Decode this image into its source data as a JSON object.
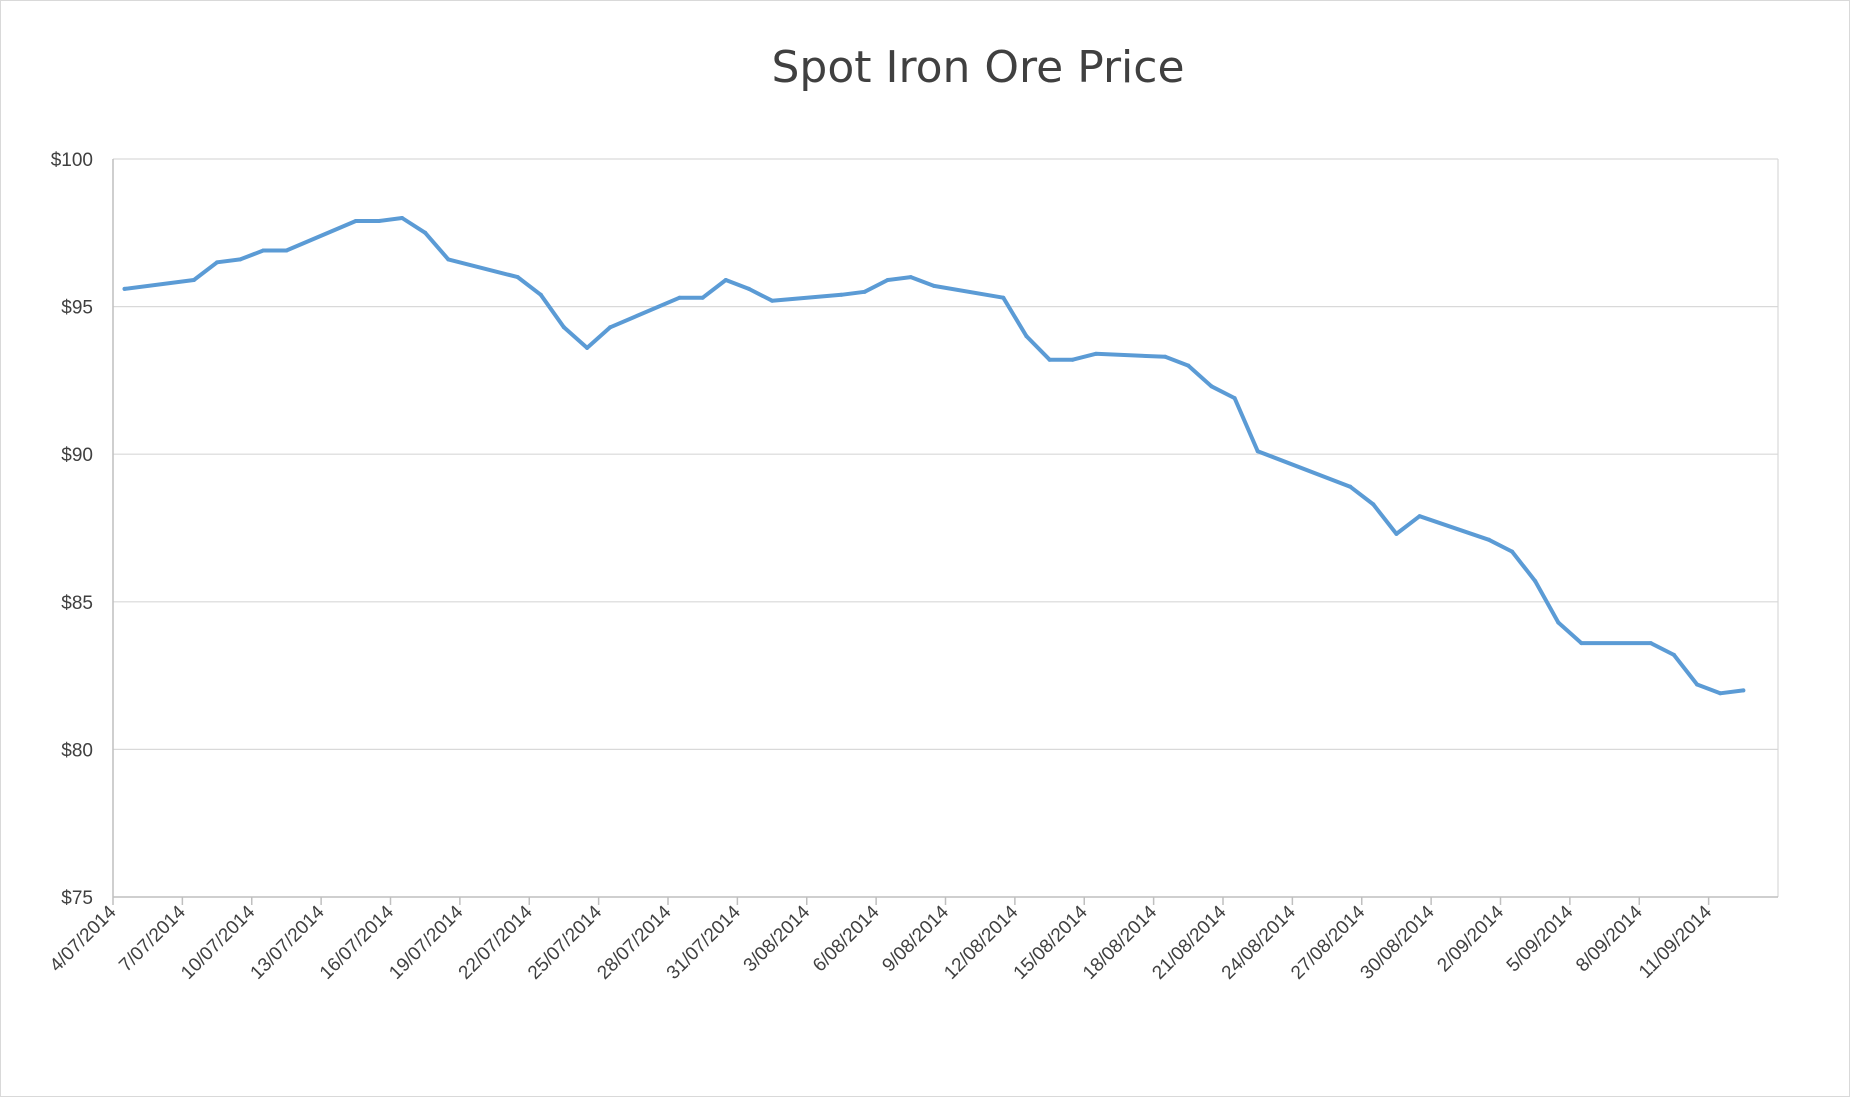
{
  "chart_data": {
    "type": "line",
    "title": "Spot Iron Ore Price",
    "xlabel": "",
    "ylabel": "",
    "ylim": [
      75,
      100
    ],
    "y_ticks": [
      "$75",
      "$80",
      "$85",
      "$90",
      "$95",
      "$100"
    ],
    "y_tick_values": [
      75,
      80,
      85,
      90,
      95,
      100
    ],
    "x_range": [
      "4/07/2014",
      "13/09/2014"
    ],
    "x_tick_labels": [
      "4/07/2014",
      "7/07/2014",
      "10/07/2014",
      "13/07/2014",
      "16/07/2014",
      "19/07/2014",
      "22/07/2014",
      "25/07/2014",
      "28/07/2014",
      "31/07/2014",
      "3/08/2014",
      "6/08/2014",
      "9/08/2014",
      "12/08/2014",
      "15/08/2014",
      "18/08/2014",
      "21/08/2014",
      "24/08/2014",
      "27/08/2014",
      "30/08/2014",
      "2/09/2014",
      "5/09/2014",
      "8/09/2014",
      "11/09/2014"
    ],
    "grid": true,
    "legend": "none",
    "series": [
      {
        "name": "Spot Iron Ore Price",
        "color": "#5b9bd5",
        "x": [
          "4/07/2014",
          "7/07/2014",
          "8/07/2014",
          "9/07/2014",
          "10/07/2014",
          "11/07/2014",
          "14/07/2014",
          "15/07/2014",
          "16/07/2014",
          "17/07/2014",
          "18/07/2014",
          "21/07/2014",
          "22/07/2014",
          "23/07/2014",
          "24/07/2014",
          "25/07/2014",
          "28/07/2014",
          "29/07/2014",
          "30/07/2014",
          "31/07/2014",
          "1/08/2014",
          "4/08/2014",
          "5/08/2014",
          "6/08/2014",
          "7/08/2014",
          "8/08/2014",
          "11/08/2014",
          "12/08/2014",
          "13/08/2014",
          "14/08/2014",
          "15/08/2014",
          "18/08/2014",
          "19/08/2014",
          "20/08/2014",
          "21/08/2014",
          "22/08/2014",
          "26/08/2014",
          "27/08/2014",
          "28/08/2014",
          "29/08/2014",
          "1/09/2014",
          "2/09/2014",
          "3/09/2014",
          "4/09/2014",
          "5/09/2014",
          "8/09/2014",
          "9/09/2014",
          "10/09/2014",
          "11/09/2014",
          "12/09/2014"
        ],
        "values": [
          95.6,
          95.9,
          96.5,
          96.6,
          96.9,
          96.9,
          97.9,
          97.9,
          98.0,
          97.5,
          96.6,
          96.0,
          95.4,
          94.3,
          93.6,
          94.3,
          95.3,
          95.3,
          95.9,
          95.6,
          95.2,
          95.4,
          95.5,
          95.9,
          96.0,
          95.7,
          95.3,
          94.0,
          93.2,
          93.2,
          93.4,
          93.3,
          93.0,
          92.3,
          91.9,
          90.1,
          88.9,
          88.3,
          87.3,
          87.9,
          87.1,
          86.7,
          85.7,
          84.3,
          83.6,
          83.6,
          83.2,
          82.2,
          81.9,
          82.0
        ]
      }
    ]
  }
}
